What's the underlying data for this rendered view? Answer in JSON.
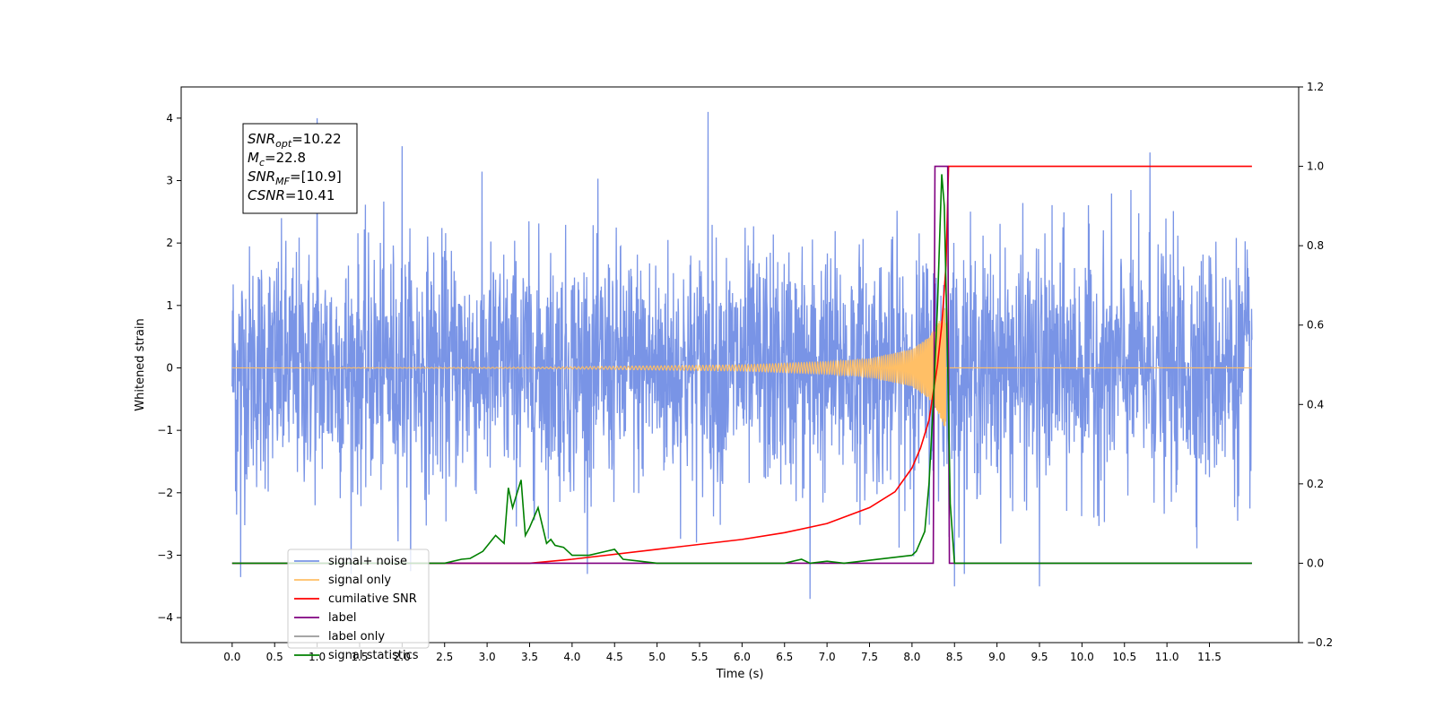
{
  "chart_data": {
    "type": "line",
    "title": "",
    "xlabel": "Time (s)",
    "ylabel": "Whitened strain",
    "xlim": [
      -0.6,
      12.55
    ],
    "ylim": [
      -4.4,
      4.5
    ],
    "y2lim": [
      -0.2,
      1.2
    ],
    "grid": false,
    "legend_position": "lower-left",
    "x_ticks": [
      "0.0",
      "0.5",
      "1.0",
      "1.5",
      "2.0",
      "2.5",
      "3.0",
      "3.5",
      "4.0",
      "4.5",
      "5.0",
      "5.5",
      "6.0",
      "6.5",
      "7.0",
      "7.5",
      "8.0",
      "8.5",
      "9.0",
      "9.5",
      "10.0",
      "10.5",
      "11.0",
      "11.5"
    ],
    "y_ticks": [
      "4",
      "3",
      "2",
      "1",
      "0",
      "−1",
      "−2",
      "−3",
      "−4"
    ],
    "y2_ticks": [
      "1.2",
      "1.0",
      "0.8",
      "0.6",
      "0.4",
      "0.2",
      "0.0",
      "−0.2"
    ],
    "annotation": [
      {
        "base": "SNR",
        "sub": "opt",
        "rest": "=10.22"
      },
      {
        "base": "M",
        "sub": "c",
        "rest": "=22.8"
      },
      {
        "base": "SNR",
        "sub": "MF",
        "rest": "=[10.9]"
      },
      {
        "base": "CSNR",
        "sub": "",
        "rest": "=10.41"
      }
    ],
    "series": [
      {
        "name": "signal+ noise",
        "color": "#7994e6",
        "axis": "left",
        "kind": "noise",
        "x_range": [
          0,
          12
        ],
        "typical_amplitude": 1.6,
        "peaks": [
          [
            1.0,
            4.0
          ],
          [
            5.6,
            4.1
          ],
          [
            10.8,
            3.45
          ],
          [
            2.0,
            3.55
          ],
          [
            0.05,
            -2.35
          ],
          [
            0.1,
            -3.35
          ],
          [
            6.8,
            -3.7
          ],
          [
            9.5,
            -3.5
          ],
          [
            8.5,
            -3.5
          ]
        ]
      },
      {
        "name": "signal only",
        "color": "#ffbf66",
        "axis": "left",
        "kind": "chirp",
        "x_range": [
          0,
          12
        ],
        "merger_time": 8.4,
        "envelope": [
          [
            0,
            0
          ],
          [
            3.5,
            0.01
          ],
          [
            6.0,
            0.05
          ],
          [
            7.0,
            0.1
          ],
          [
            7.5,
            0.15
          ],
          [
            8.0,
            0.3
          ],
          [
            8.2,
            0.5
          ],
          [
            8.3,
            0.7
          ],
          [
            8.4,
            1.0
          ],
          [
            8.45,
            0
          ],
          [
            12,
            0
          ]
        ]
      },
      {
        "name": "cumilative SNR",
        "color": "#ff0000",
        "axis": "right",
        "x": [
          0,
          3.5,
          4.0,
          5.0,
          6.0,
          6.5,
          7.0,
          7.5,
          7.8,
          8.0,
          8.1,
          8.2,
          8.3,
          8.35,
          8.4,
          8.43,
          12
        ],
        "values": [
          0,
          0,
          0.01,
          0.035,
          0.06,
          0.077,
          0.1,
          0.14,
          0.18,
          0.24,
          0.29,
          0.36,
          0.5,
          0.6,
          0.75,
          1.0,
          1.0
        ]
      },
      {
        "name": "label",
        "color": "#800080",
        "axis": "right",
        "x": [
          0,
          8.25,
          8.27,
          8.42,
          8.44,
          12
        ],
        "values": [
          0,
          0,
          1.0,
          1.0,
          0,
          0
        ]
      },
      {
        "name": "label only",
        "color": "#999999",
        "axis": "right",
        "x": [],
        "values": []
      },
      {
        "name": "signal statistics",
        "color": "#008000",
        "axis": "right",
        "x": [
          0,
          2.5,
          2.7,
          2.8,
          2.95,
          3.1,
          3.2,
          3.25,
          3.3,
          3.4,
          3.45,
          3.5,
          3.6,
          3.7,
          3.75,
          3.8,
          3.9,
          4.0,
          4.2,
          4.4,
          4.5,
          4.6,
          4.8,
          5.0,
          6.5,
          6.7,
          6.8,
          7.0,
          7.2,
          8.0,
          8.05,
          8.15,
          8.2,
          8.25,
          8.3,
          8.33,
          8.35,
          8.38,
          8.42,
          8.45,
          8.5,
          12
        ],
        "values": [
          0,
          0,
          0.01,
          0.012,
          0.03,
          0.07,
          0.05,
          0.19,
          0.14,
          0.21,
          0.07,
          0.09,
          0.14,
          0.05,
          0.06,
          0.045,
          0.04,
          0.02,
          0.02,
          0.03,
          0.035,
          0.01,
          0.005,
          0,
          0,
          0.01,
          0,
          0.005,
          0,
          0.02,
          0.03,
          0.08,
          0.2,
          0.4,
          0.65,
          0.85,
          0.98,
          0.9,
          0.5,
          0.15,
          0,
          0
        ]
      }
    ],
    "legend": [
      "signal+ noise",
      "signal only",
      "cumilative SNR",
      "label",
      "label only",
      "signal statistics"
    ]
  }
}
